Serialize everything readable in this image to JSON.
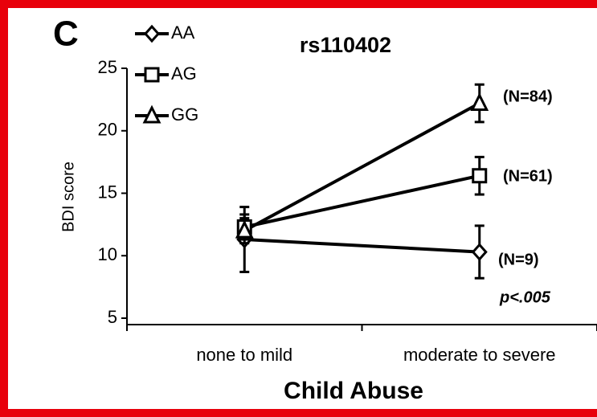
{
  "chart_data": {
    "type": "line",
    "panel": "C",
    "title": "rs110402",
    "x_label": "Child Abuse",
    "y_label": "BDI score",
    "categories": [
      "none to mild",
      "moderate to severe"
    ],
    "series": [
      {
        "name": "AA",
        "marker": "diamond",
        "color": "#000000",
        "values": [
          11.3,
          10.3
        ],
        "errors": [
          2.6,
          2.1
        ]
      },
      {
        "name": "AG",
        "marker": "square",
        "color": "#000000",
        "values": [
          12.3,
          16.4
        ],
        "errors": [
          1.0,
          1.5
        ]
      },
      {
        "name": "GG",
        "marker": "triangle",
        "color": "#000000",
        "values": [
          12.0,
          22.2
        ],
        "errors": [
          1.0,
          1.5
        ]
      }
    ],
    "annotations": [
      "(N=84)",
      "(N=61)",
      "(N=9)",
      "p<.005"
    ],
    "ylim": [
      5,
      25
    ],
    "yticks": [
      5,
      10,
      15,
      20,
      25
    ],
    "grid": false,
    "legend": "upper left"
  }
}
